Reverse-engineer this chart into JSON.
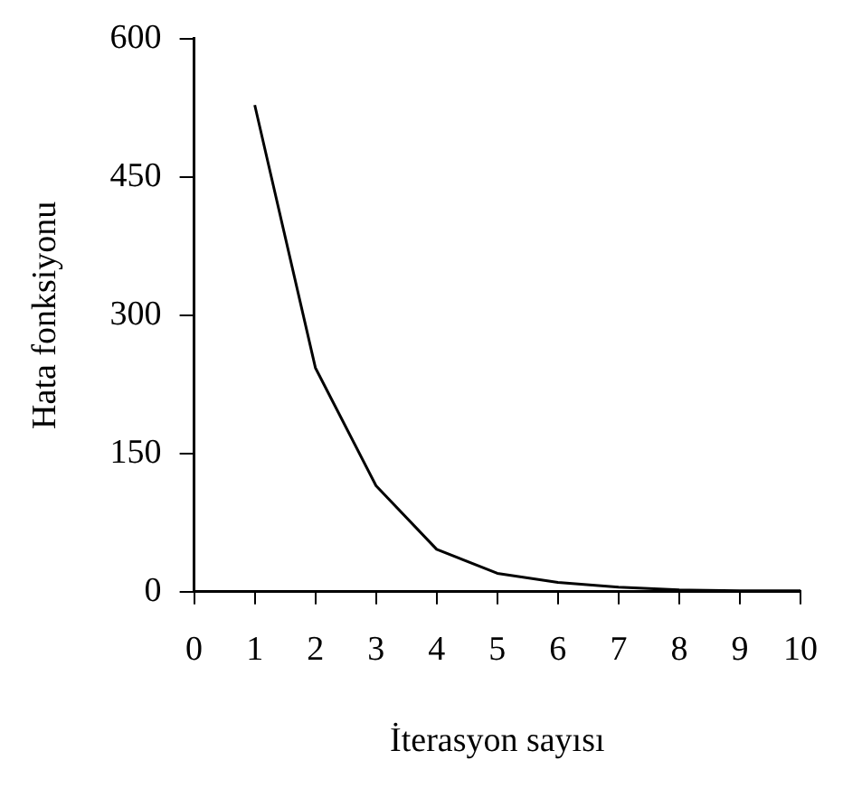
{
  "chart_data": {
    "type": "line",
    "xlabel": "İterasyon sayısı",
    "ylabel": "Hata fonksiyonu",
    "x": [
      1,
      2,
      3,
      4,
      5,
      6,
      7,
      8,
      9,
      10
    ],
    "series": [
      {
        "color": "#000000",
        "values": [
          528,
          243,
          115,
          46,
          20,
          10,
          5,
          2,
          1,
          1
        ]
      }
    ],
    "xlim": [
      0,
      10
    ],
    "xticks": [
      0,
      1,
      2,
      3,
      4,
      5,
      6,
      7,
      8,
      9,
      10
    ],
    "ylim": [
      0,
      600
    ],
    "yticks": [
      0,
      150,
      300,
      450,
      600
    ],
    "grid": false,
    "legend": false,
    "marker": "none",
    "line_style": "solid"
  }
}
